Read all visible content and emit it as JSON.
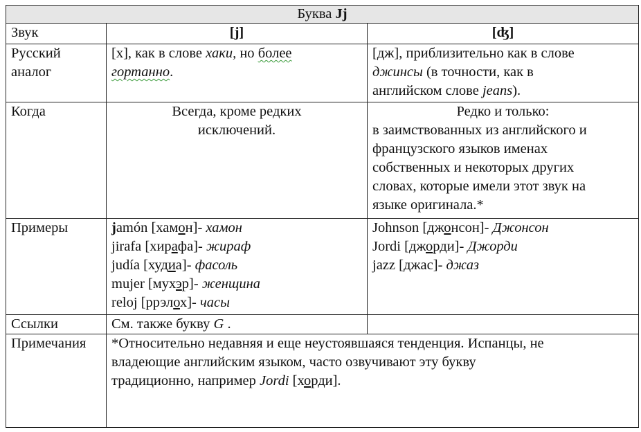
{
  "title": {
    "prefix": "Буква ",
    "letter": "Jj"
  },
  "rows": {
    "sound": {
      "label": "Звук",
      "col1": "[j]",
      "col2": "[ʤ]"
    },
    "analog": {
      "label_lines": [
        "Русский",
        "аналог"
      ],
      "col1": {
        "a": "[x], как в слове ",
        "b": "хаки,",
        "c": " но ",
        "d": "более",
        "e": "гортанно",
        "f": "."
      },
      "col2": {
        "l1": "[дж], приблизительно как в слове",
        "l2i": "джинсы",
        "l2": " (в точности, как в",
        "l3": "английском слове ",
        "l3i": "jeans",
        "l3e": ")."
      }
    },
    "when": {
      "label": "Когда",
      "col1_lines": [
        "Всегда, кроме редких",
        "исключений."
      ],
      "col2_lines": [
        "Редко и только:",
        "в заимствованных из английского и",
        "французского языков именах",
        "собственных и некоторых других",
        "словах, которые имели этот звук на",
        "языке оригинала.*"
      ]
    },
    "examples": {
      "label": "Примеры",
      "col1": [
        {
          "bold": "j",
          "word": "amón",
          "pre": " [хам",
          "ul": "о",
          "post": "н]- ",
          "tr": "хамон"
        },
        {
          "bold": "",
          "word": "jirafa",
          "pre": " [хир",
          "ul": "а",
          "post": "фа]- ",
          "tr": "жираф"
        },
        {
          "bold": "",
          "word": "judía",
          "pre": " [худ",
          "ul": "и",
          "post": "а]- ",
          "tr": "фасоль"
        },
        {
          "bold": "",
          "word": "mujer",
          "pre": " [мух",
          "ul": "э",
          "post": "р]- ",
          "tr": "женщина"
        },
        {
          "bold": "",
          "word": "reloj",
          "pre": " [ррэл",
          "ul": "о",
          "post": "х]- ",
          "tr": "часы"
        }
      ],
      "col2": [
        {
          "word": "Johnson",
          "pre": " [дж",
          "ul": "о",
          "post": "нсон]- ",
          "tr": "Джонсон"
        },
        {
          "word": "Jordi",
          "pre": " [дж",
          "ul": "о",
          "post": "рди]- ",
          "tr": "Джорди"
        },
        {
          "word": "jazz",
          "pre": " [джас",
          "ul": "",
          "post": "]- ",
          "tr": "джаз"
        }
      ]
    },
    "links": {
      "label": "Ссылки",
      "text": "См. также букву ",
      "letter": "G",
      "end": " ."
    },
    "notes": {
      "label": "Примечания",
      "l1": "*Относительно недавняя и еще неустоявшаяся тенденция. Испанцы, не",
      "l2": "владеющие английским языком, часто озвучивают эту букву",
      "l3": "традиционно, например  ",
      "l3i": "Jordi",
      "l3a": " [х",
      "l3u": "о",
      "l3b": "рди]."
    }
  }
}
